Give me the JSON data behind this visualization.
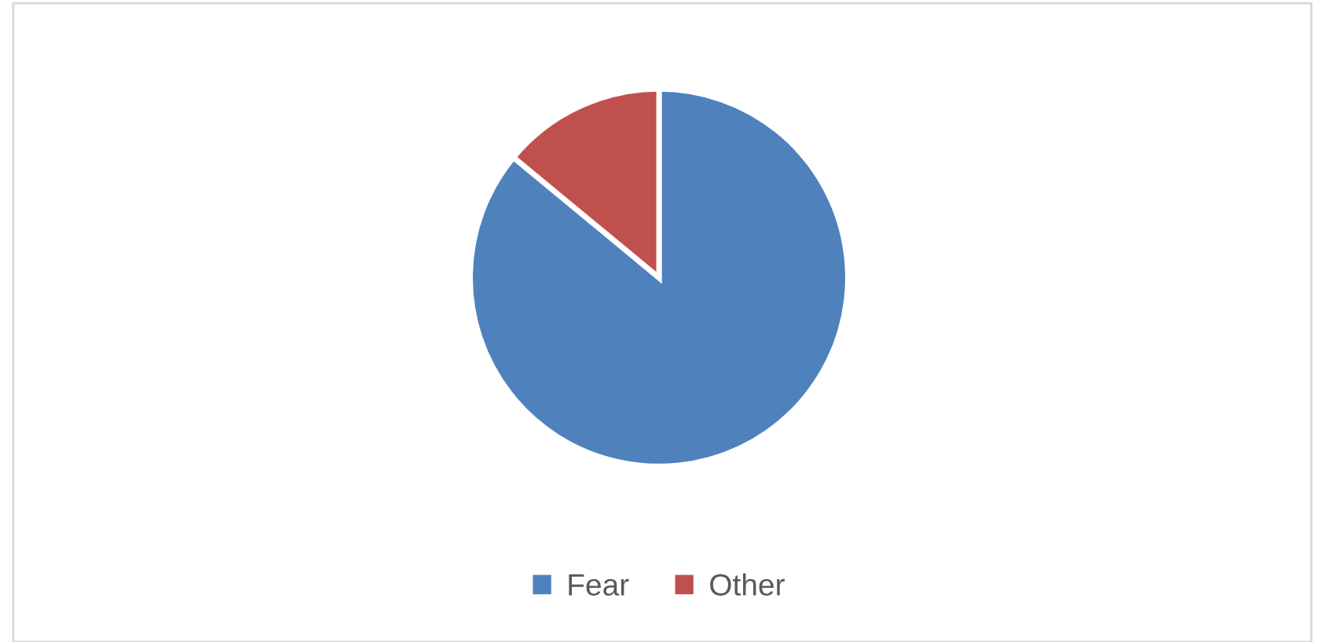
{
  "chart_data": {
    "type": "pie",
    "categories": [
      "Fear",
      "Other"
    ],
    "values": [
      86,
      14
    ],
    "colors": [
      "#4f81bd",
      "#c0504d"
    ],
    "legend": "bottom"
  }
}
